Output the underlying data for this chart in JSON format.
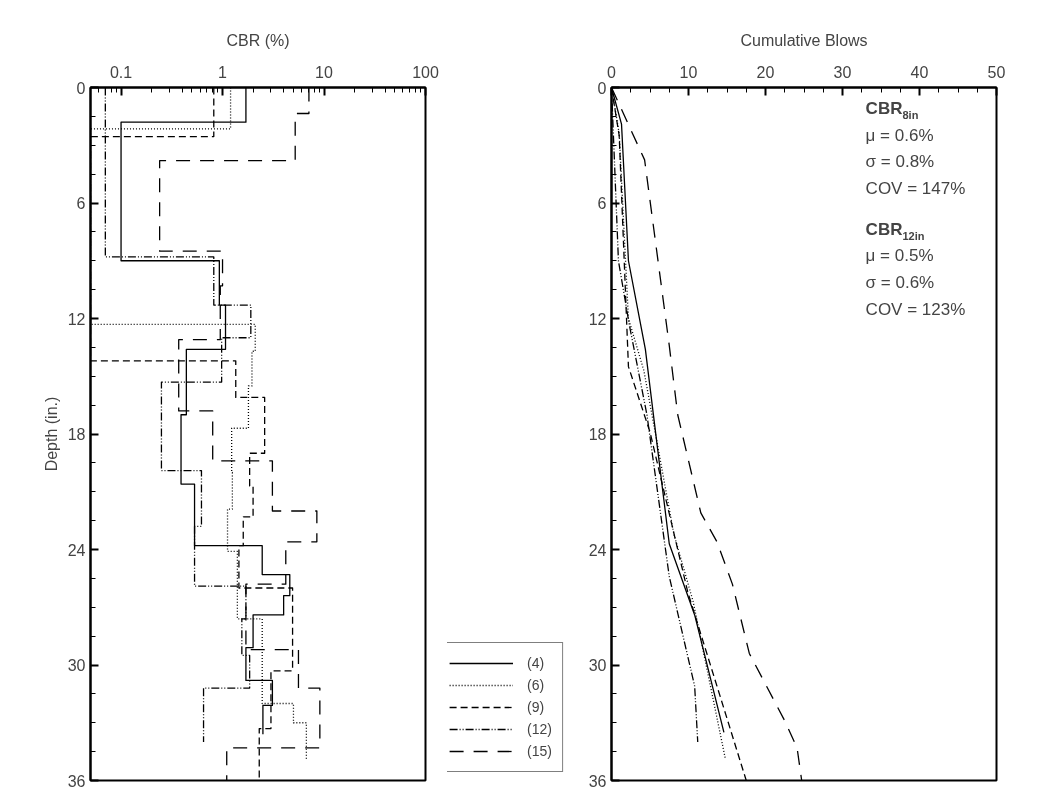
{
  "chart_data": [
    {
      "type": "step",
      "orientation": "horizontal",
      "xlabel": "CBR (%)",
      "ylabel": "Depth (in.)",
      "log": "x",
      "xlim": [
        0.05,
        100
      ],
      "xticks": [
        0.1,
        1,
        10,
        100
      ],
      "ylim": [
        36,
        0
      ],
      "yticks": [
        0,
        6,
        12,
        18,
        24,
        30,
        36
      ],
      "grid": false,
      "legend": "bottom right",
      "series": [
        {
          "name": "(4)",
          "color": "#000000",
          "line_style": "solid",
          "x": [
            0,
            1.8,
            9.0,
            11.3,
            13.6,
            17.0,
            20.6,
            23.8,
            25.3,
            26.4,
            27.4,
            29.1,
            30.8,
            32.1,
            33.6
          ],
          "values": [
            1.7,
            0.1,
            0.93,
            1.07,
            0.44,
            0.39,
            0.53,
            2.46,
            4.6,
            4.0,
            2.0,
            1.7,
            3.1,
            2.5,
            2.5
          ]
        },
        {
          "name": "(6)",
          "color": "#000000",
          "line_style": "dotted",
          "x": [
            0,
            2.15,
            12.3,
            13.7,
            15.5,
            17.7,
            20.0,
            21.9,
            24.1,
            27.6,
            32.0,
            33.0,
            34.9
          ],
          "values": [
            1.2,
            0.05,
            2.1,
            1.95,
            1.8,
            1.23,
            1.25,
            1.12,
            1.4,
            2.46,
            5.0,
            6.7,
            6.7
          ]
        },
        {
          "name": "(9)",
          "color": "#000000",
          "line_style": "dashed",
          "x": [
            0,
            2.55,
            14.2,
            16.1,
            19.0,
            20.7,
            22.3,
            23.8,
            26.0,
            30.3,
            33.3,
            36
          ],
          "values": [
            0.82,
            0.05,
            1.35,
            2.6,
            1.85,
            2.0,
            1.6,
            1.45,
            4.9,
            3.0,
            2.3,
            2.3
          ]
        },
        {
          "name": "(12)",
          "color": "#000000",
          "line_style": "dashdotdot",
          "x": [
            0,
            8.8,
            11.3,
            13.0,
            15.3,
            19.9,
            22.8,
            25.9,
            27.6,
            29.5,
            31.2,
            34.0
          ],
          "values": [
            0.07,
            0.82,
            1.9,
            0.98,
            0.25,
            0.62,
            0.53,
            1.7,
            1.55,
            1.85,
            0.65,
            0.65
          ]
        },
        {
          "name": "(15)",
          "color": "#000000",
          "line_style": "longdash",
          "x": [
            0,
            1.35,
            3.8,
            8.5,
            10.3,
            13.1,
            16.8,
            19.4,
            22.0,
            23.6,
            25.8,
            29.2,
            31.2,
            34.3,
            36
          ],
          "values": [
            7.1,
            5.2,
            0.24,
            1.0,
            0.95,
            0.37,
            0.8,
            3.1,
            8.5,
            4.2,
            1.7,
            5.6,
            9.1,
            1.1,
            1.1
          ]
        }
      ]
    },
    {
      "type": "line",
      "orientation": "horizontal",
      "xlabel": "Cumulative Blows",
      "xlim": [
        0,
        50
      ],
      "xticks": [
        0,
        10,
        20,
        30,
        40,
        50
      ],
      "ylim": [
        36,
        0
      ],
      "yticks": [
        0,
        6,
        12,
        18,
        24,
        30,
        36
      ],
      "grid": false,
      "annotations": [
        "CBR$_{8in}$",
        "μ = 0.6%",
        "σ = 0.8%",
        "COV = 147%",
        "CBR$_{12in}$",
        "μ = 0.5%",
        "σ = 0.6%",
        "COV = 123%"
      ],
      "series": [
        {
          "color": "#000000",
          "line_style": "solid",
          "x": [
            0,
            1.9,
            9.0,
            13.6,
            23.7,
            27.4,
            33.5
          ],
          "values": [
            0,
            1.3,
            2.2,
            4.4,
            7.5,
            10.8,
            14.6
          ]
        },
        {
          "color": "#000000",
          "line_style": "dotted",
          "x": [
            0,
            2.4,
            12.0,
            14.7,
            23.2,
            26.7,
            34.9
          ],
          "values": [
            0,
            1.0,
            2.2,
            4.2,
            8.1,
            10.6,
            14.8
          ]
        },
        {
          "color": "#000000",
          "line_style": "dashed",
          "x": [
            0,
            2.5,
            14.5,
            17.9,
            26.2,
            36
          ],
          "values": [
            0,
            1.0,
            2.2,
            5.0,
            9.9,
            17.5
          ]
        },
        {
          "color": "#000000",
          "line_style": "dashdotdot",
          "x": [
            0,
            9.0,
            12.3,
            17.0,
            25.4,
            31.1,
            34.0
          ],
          "values": [
            0,
            0.9,
            2.3,
            4.6,
            7.5,
            10.8,
            11.2
          ]
        },
        {
          "color": "#000000",
          "line_style": "longdash",
          "x": [
            0,
            3.76,
            13.4,
            17.0,
            22.1,
            23.6,
            25.8,
            29.4,
            32.9,
            34.3,
            36
          ],
          "values": [
            0,
            4.3,
            7.5,
            8.6,
            11.6,
            13.7,
            15.7,
            17.9,
            22.5,
            24.1,
            24.7
          ]
        }
      ]
    }
  ]
}
